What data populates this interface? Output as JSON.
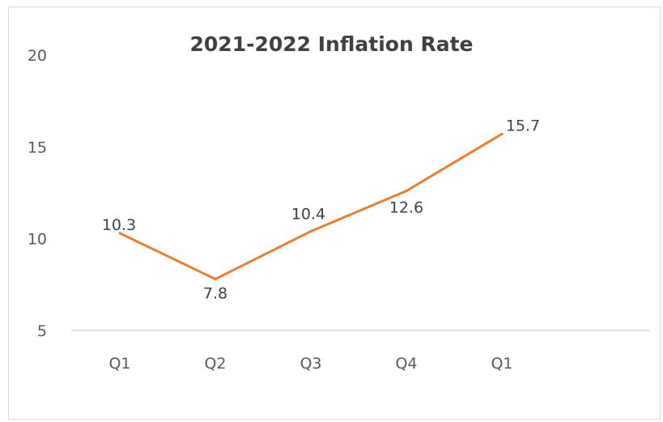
{
  "chart_data": {
    "type": "line",
    "title": "2021-2022 Inflation Rate",
    "categories": [
      "Q1",
      "Q2",
      "Q3",
      "Q4",
      "Q1"
    ],
    "series": [
      {
        "values": [
          10.3,
          7.8,
          10.4,
          12.6,
          15.7
        ],
        "color": "#ED7D31"
      }
    ],
    "data_labels": [
      "10.3",
      "7.8",
      "10.4",
      "12.6",
      "15.7"
    ],
    "y_ticks": [
      5,
      10,
      15,
      20
    ],
    "ylim": [
      5,
      20
    ],
    "grid": false,
    "legend": "none",
    "xlabel": "",
    "ylabel": ""
  },
  "colors": {
    "line": "#ED7D31",
    "axis": "#d9d9d9",
    "text": "#595959"
  }
}
